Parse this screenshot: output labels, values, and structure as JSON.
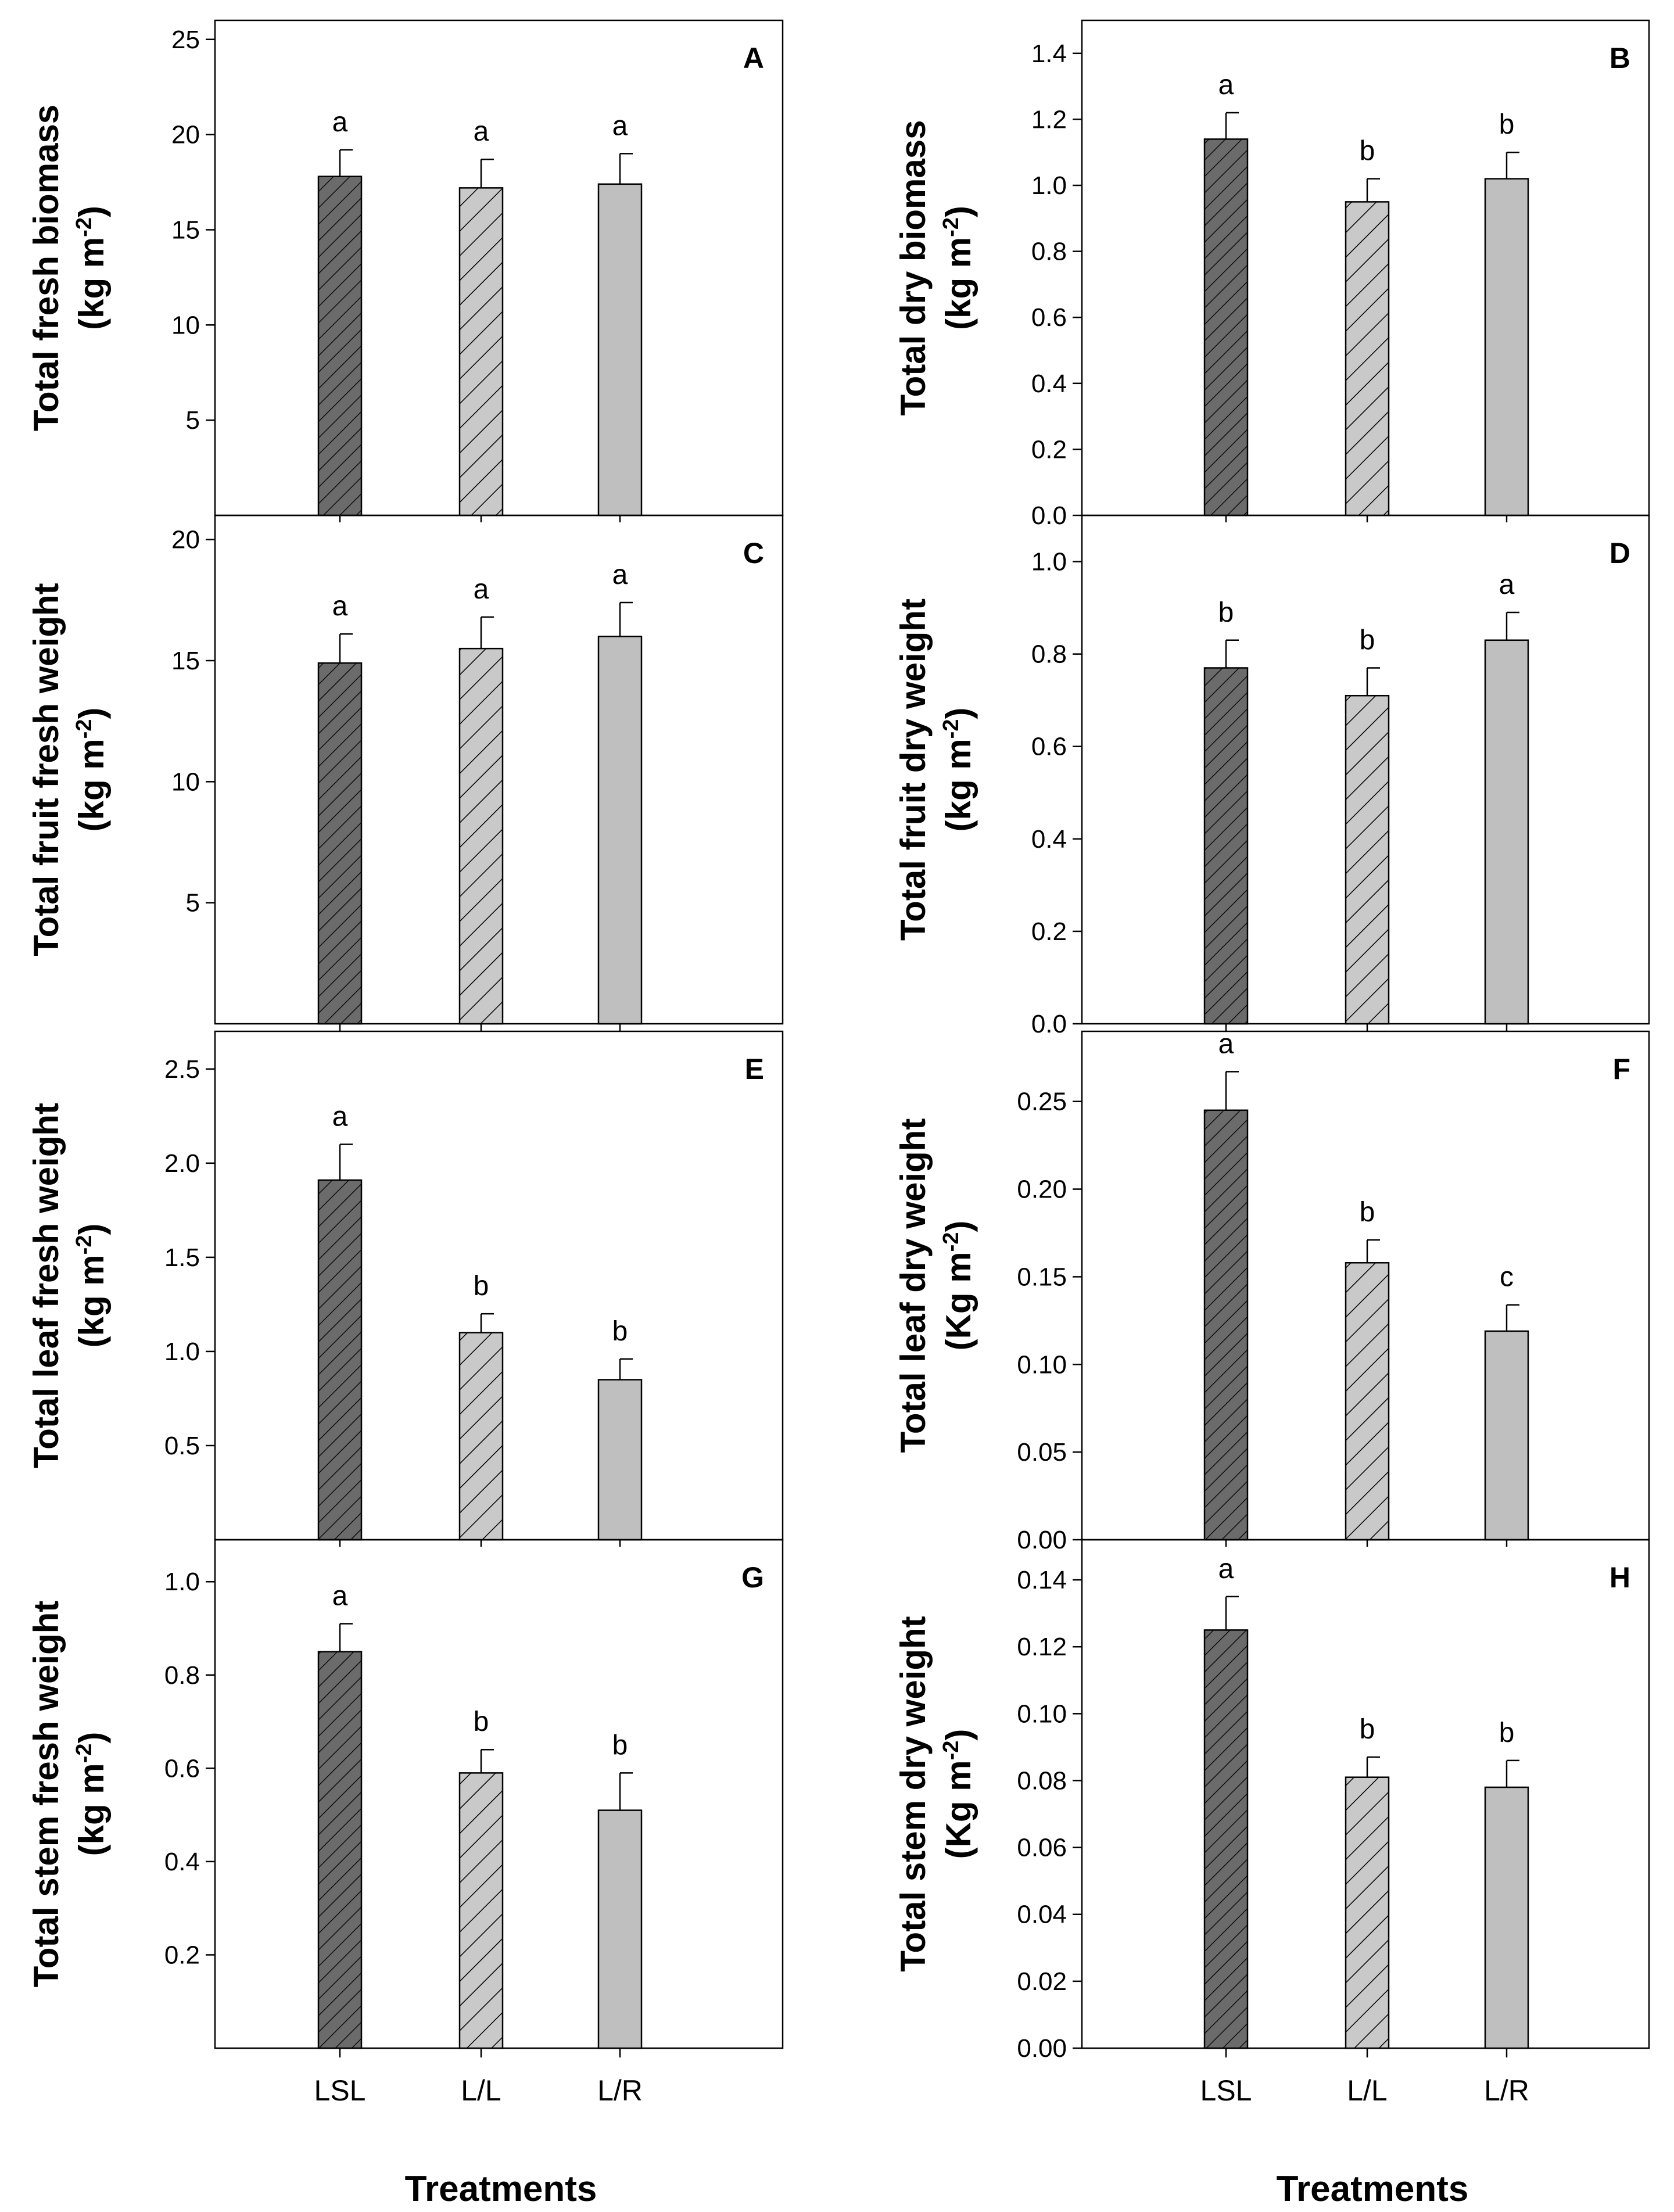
{
  "figure": {
    "xlabel": "Treatments",
    "categories": [
      "LSL",
      "L/L",
      "L/R"
    ]
  },
  "colors": {
    "bar_lsl_fill": "#6b6b6b",
    "bar_ll_fill": "#c9c9c9",
    "bar_lr_fill": "#bfbfbf",
    "hatch_line": "#000000",
    "axis": "#000000"
  },
  "chart_data": [
    {
      "panel": "A",
      "type": "bar",
      "ylabel_line1": "Total fresh biomass",
      "ylabel_line2": "(kg m",
      "ylabel_sup": "-2",
      "ylabel_tail": ")",
      "categories": [
        "LSL",
        "L/L",
        "L/R"
      ],
      "values": [
        17.8,
        17.2,
        17.4
      ],
      "errors": [
        1.4,
        1.5,
        1.6
      ],
      "significance": [
        "a",
        "a",
        "a"
      ],
      "ylim": [
        0,
        26
      ],
      "yticks": [
        5,
        10,
        15,
        20,
        25
      ],
      "ytick_labels": [
        "5",
        "10",
        "15",
        "20",
        "25"
      ]
    },
    {
      "panel": "B",
      "type": "bar",
      "ylabel_line1": "Total dry biomass",
      "ylabel_line2": "(kg m",
      "ylabel_sup": "-2",
      "ylabel_tail": ")",
      "categories": [
        "LSL",
        "L/L",
        "L/R"
      ],
      "values": [
        1.14,
        0.95,
        1.02
      ],
      "errors": [
        0.08,
        0.07,
        0.08
      ],
      "significance": [
        "a",
        "b",
        "b"
      ],
      "ylim": [
        0,
        1.5
      ],
      "yticks": [
        0.0,
        0.2,
        0.4,
        0.6,
        0.8,
        1.0,
        1.2,
        1.4
      ],
      "ytick_labels": [
        "0.0",
        "0.2",
        "0.4",
        "0.6",
        "0.8",
        "1.0",
        "1.2",
        "1.4"
      ]
    },
    {
      "panel": "C",
      "type": "bar",
      "ylabel_line1": "Total fruit fresh weight",
      "ylabel_line2": "(kg m",
      "ylabel_sup": "-2",
      "ylabel_tail": ")",
      "categories": [
        "LSL",
        "L/L",
        "L/R"
      ],
      "values": [
        14.9,
        15.5,
        16.0
      ],
      "errors": [
        1.2,
        1.3,
        1.4
      ],
      "significance": [
        "a",
        "a",
        "a"
      ],
      "ylim": [
        0,
        21
      ],
      "yticks": [
        5,
        10,
        15,
        20
      ],
      "ytick_labels": [
        "5",
        "10",
        "15",
        "20"
      ]
    },
    {
      "panel": "D",
      "type": "bar",
      "ylabel_line1": "Total fruit dry weight",
      "ylabel_line2": "(kg m",
      "ylabel_sup": "-2",
      "ylabel_tail": ")",
      "categories": [
        "LSL",
        "L/L",
        "L/R"
      ],
      "values": [
        0.77,
        0.71,
        0.83
      ],
      "errors": [
        0.06,
        0.06,
        0.06
      ],
      "significance": [
        "b",
        "b",
        "a"
      ],
      "ylim": [
        0,
        1.1
      ],
      "yticks": [
        0.0,
        0.2,
        0.4,
        0.6,
        0.8,
        1.0
      ],
      "ytick_labels": [
        "0.0",
        "0.2",
        "0.4",
        "0.6",
        "0.8",
        "1.0"
      ]
    },
    {
      "panel": "E",
      "type": "bar",
      "ylabel_line1": "Total leaf fresh weight",
      "ylabel_line2": "(kg m",
      "ylabel_sup": "-2",
      "ylabel_tail": ")",
      "categories": [
        "LSL",
        "L/L",
        "L/R"
      ],
      "values": [
        1.91,
        1.1,
        0.85
      ],
      "errors": [
        0.19,
        0.1,
        0.11
      ],
      "significance": [
        "a",
        "b",
        "b"
      ],
      "ylim": [
        0,
        2.7
      ],
      "yticks": [
        0.5,
        1.0,
        1.5,
        2.0,
        2.5
      ],
      "ytick_labels": [
        "0.5",
        "1.0",
        "1.5",
        "2.0",
        "2.5"
      ]
    },
    {
      "panel": "F",
      "type": "bar",
      "ylabel_line1": "Total leaf dry weight",
      "ylabel_line2": "(Kg m",
      "ylabel_sup": "-2",
      "ylabel_tail": ")",
      "categories": [
        "LSL",
        "L/L",
        "L/R"
      ],
      "values": [
        0.245,
        0.158,
        0.119
      ],
      "errors": [
        0.022,
        0.013,
        0.015
      ],
      "significance": [
        "a",
        "b",
        "c"
      ],
      "ylim": [
        0,
        0.29
      ],
      "yticks": [
        0.0,
        0.05,
        0.1,
        0.15,
        0.2,
        0.25
      ],
      "ytick_labels": [
        "0.00",
        "0.05",
        "0.10",
        "0.15",
        "0.20",
        "0.25"
      ]
    },
    {
      "panel": "G",
      "type": "bar",
      "ylabel_line1": "Total stem fresh weight",
      "ylabel_line2": "(kg m",
      "ylabel_sup": "-2",
      "ylabel_tail": ")",
      "categories": [
        "LSL",
        "L/L",
        "L/R"
      ],
      "values": [
        0.85,
        0.59,
        0.51
      ],
      "errors": [
        0.06,
        0.05,
        0.08
      ],
      "significance": [
        "a",
        "b",
        "b"
      ],
      "ylim": [
        0,
        1.09
      ],
      "yticks": [
        0.2,
        0.4,
        0.6,
        0.8,
        1.0
      ],
      "ytick_labels": [
        "0.2",
        "0.4",
        "0.6",
        "0.8",
        "1.0"
      ]
    },
    {
      "panel": "H",
      "type": "bar",
      "ylabel_line1": "Total stem dry weight",
      "ylabel_line2": "(Kg m",
      "ylabel_sup": "-2",
      "ylabel_tail": ")",
      "categories": [
        "LSL",
        "L/L",
        "L/R"
      ],
      "values": [
        0.125,
        0.081,
        0.078
      ],
      "errors": [
        0.01,
        0.006,
        0.008
      ],
      "significance": [
        "a",
        "b",
        "b"
      ],
      "ylim": [
        0,
        0.152
      ],
      "yticks": [
        0.0,
        0.02,
        0.04,
        0.06,
        0.08,
        0.1,
        0.12,
        0.14
      ],
      "ytick_labels": [
        "0.00",
        "0.02",
        "0.04",
        "0.06",
        "0.08",
        "0.10",
        "0.12",
        "0.14"
      ]
    }
  ]
}
